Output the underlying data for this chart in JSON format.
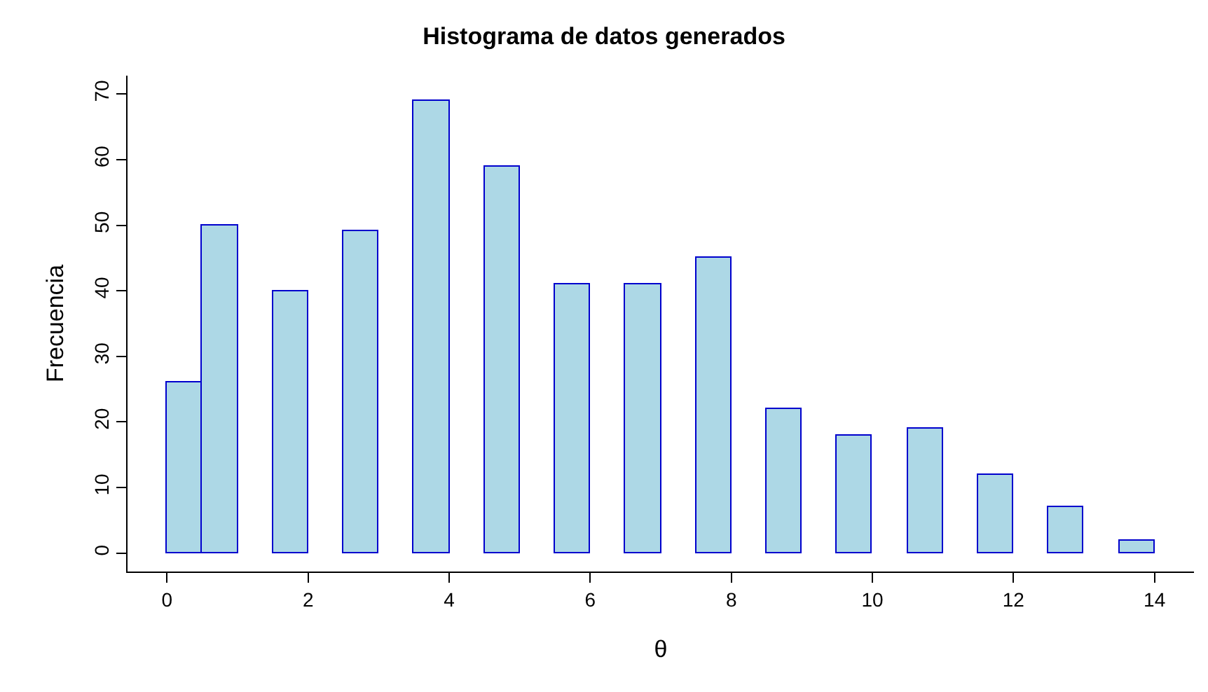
{
  "chart_data": {
    "type": "histogram",
    "title": "Histograma de datos generados",
    "xlabel": "θ",
    "ylabel": "Frecuencia",
    "bins": [
      0,
      0.5,
      1,
      1.5,
      2,
      2.5,
      3,
      3.5,
      4,
      4.5,
      5,
      5.5,
      6,
      6.5,
      7,
      7.5,
      8,
      8.5,
      9,
      9.5,
      10,
      10.5,
      11,
      11.5,
      12,
      12.5,
      13,
      13.5,
      14
    ],
    "values": [
      26,
      50,
      0,
      40,
      0,
      49,
      0,
      69,
      0,
      59,
      0,
      41,
      0,
      41,
      0,
      45,
      0,
      22,
      0,
      18,
      0,
      19,
      0,
      12,
      0,
      7,
      0,
      2
    ],
    "color": "#add8e6",
    "xlim": [
      -0.56,
      14.56
    ],
    "ylim": [
      -2.8,
      72.8
    ],
    "xticks": [
      0,
      2,
      4,
      6,
      8,
      10,
      12,
      14
    ],
    "yticks": [
      0,
      10,
      20,
      30,
      40,
      50,
      60,
      70
    ],
    "grid": false,
    "legend": false
  }
}
